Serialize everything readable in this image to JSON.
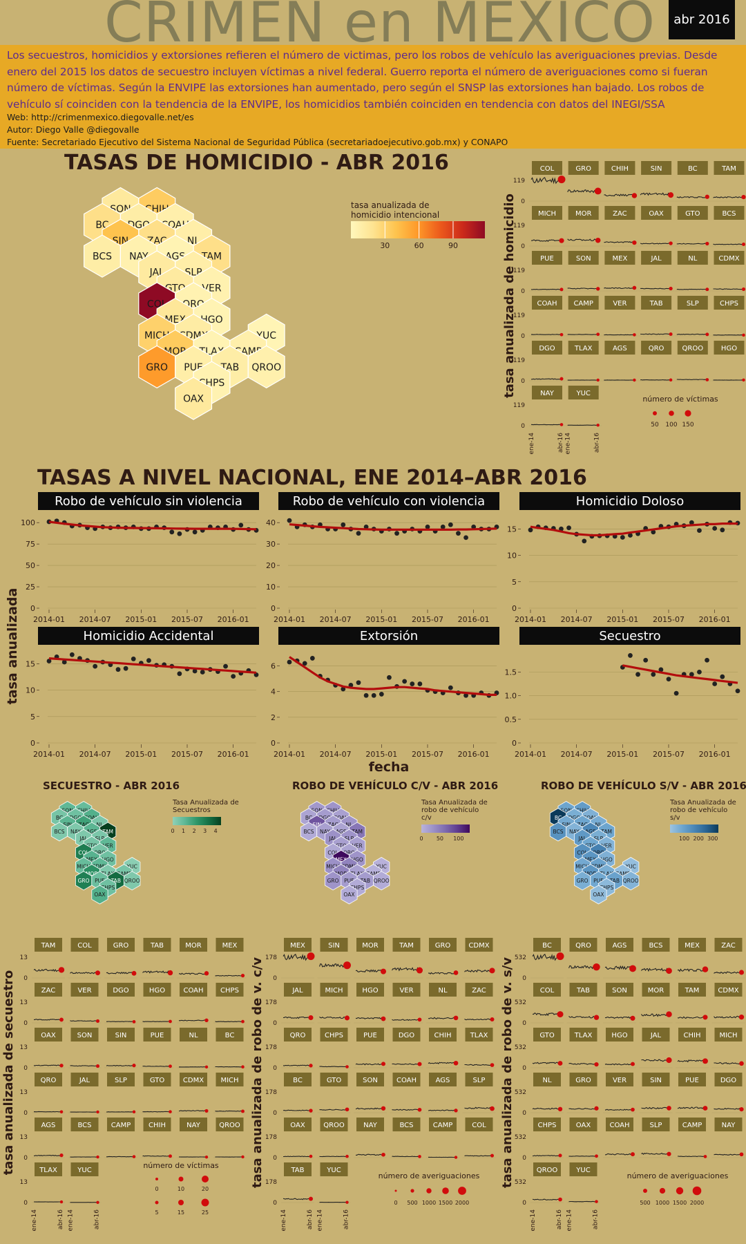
{
  "header": {
    "title": "CRIMEN en MEXICO",
    "date_badge": "abr 2016",
    "description": "Los secuestros, homicidios y extorsiones refieren el número de victimas, pero los robos de vehículo las averiguaciones previas. Desde enero del 2015 los datos de secuestro incluyen víctimas a nivel federal. Guerro reporta el número de averiguaciones como si fueran número de víctimas. Según la ENVIPE las extorsiones han aumentado, pero según el SNSP las extorsiones han bajado. Los robos de vehículo sí coinciden con la tendencia de la ENVIPE, los homicidios también coinciden en tendencia con datos del INEGI/SSA",
    "web": "Web: http://crimenmexico.diegovalle.net/es",
    "author": "Autor: Diego Valle @diegovalle",
    "source": "Fuente: Secretariado Ejecutivo del Sistema Nacional de Seguridad Pública (secretariadoejecutivo.gob.mx) y CONAPO"
  },
  "colors": {
    "background": "#c8b273",
    "band": "#e7a925",
    "trend": "#b30d0d",
    "panel_header": "#0c0c0c",
    "facet_strip": "#7a6a2c"
  },
  "titles": {
    "homicide_map": "TASAS DE HOMICIDIO - ABR 2016",
    "national": "TASAS A NIVEL NACIONAL, ENE 2014–ABR 2016",
    "kidnap_map": "SECUESTRO - ABR 2016",
    "cv_map": "ROBO DE VEHÍCULO C/V - ABR 2016",
    "sv_map": "ROBO DE VEHÍCULO S/V - ABR 2016"
  },
  "hexmaps": {
    "states": [
      {
        "id": "SON",
        "c": 1,
        "r": 0
      },
      {
        "id": "CHIH",
        "c": 3,
        "r": 0
      },
      {
        "id": "BC",
        "c": 0,
        "r": 1
      },
      {
        "id": "DGO",
        "c": 2,
        "r": 1
      },
      {
        "id": "COAH",
        "c": 4,
        "r": 1
      },
      {
        "id": "SIN",
        "c": 1,
        "r": 2
      },
      {
        "id": "ZAC",
        "c": 3,
        "r": 2
      },
      {
        "id": "NL",
        "c": 5,
        "r": 2
      },
      {
        "id": "BCS",
        "c": 0,
        "r": 3
      },
      {
        "id": "NAY",
        "c": 2,
        "r": 3
      },
      {
        "id": "AGS",
        "c": 4,
        "r": 3
      },
      {
        "id": "TAM",
        "c": 6,
        "r": 3
      },
      {
        "id": "JAL",
        "c": 3,
        "r": 4
      },
      {
        "id": "SLP",
        "c": 5,
        "r": 4
      },
      {
        "id": "GTO",
        "c": 4,
        "r": 5
      },
      {
        "id": "VER",
        "c": 6,
        "r": 5
      },
      {
        "id": "COL",
        "c": 3,
        "r": 6
      },
      {
        "id": "QRO",
        "c": 5,
        "r": 6
      },
      {
        "id": "MEX",
        "c": 4,
        "r": 7
      },
      {
        "id": "HGO",
        "c": 6,
        "r": 7
      },
      {
        "id": "MICH",
        "c": 3,
        "r": 8
      },
      {
        "id": "CDMX",
        "c": 5,
        "r": 8
      },
      {
        "id": "YUC",
        "c": 9,
        "r": 8
      },
      {
        "id": "MOR",
        "c": 4,
        "r": 9
      },
      {
        "id": "TLAX",
        "c": 6,
        "r": 9
      },
      {
        "id": "CAMP",
        "c": 8,
        "r": 9
      },
      {
        "id": "GRO",
        "c": 3,
        "r": 10
      },
      {
        "id": "PUE",
        "c": 5,
        "r": 10
      },
      {
        "id": "TAB",
        "c": 7,
        "r": 10
      },
      {
        "id": "QROO",
        "c": 9,
        "r": 10
      },
      {
        "id": "CHPS",
        "c": 6,
        "r": 11
      },
      {
        "id": "OAX",
        "c": 5,
        "r": 12
      }
    ],
    "homicide_values": {
      "SON": 14,
      "CHIH": 34,
      "BC": 22,
      "DGO": 10,
      "COAH": 8,
      "SIN": 40,
      "ZAC": 22,
      "NL": 9,
      "BCS": 10,
      "NAY": 6,
      "AGS": 4,
      "TAM": 22,
      "JAL": 13,
      "SLP": 9,
      "GTO": 13,
      "VER": 6,
      "COL": 118,
      "QRO": 5,
      "MEX": 16,
      "HGO": 4,
      "MICH": 31,
      "CDMX": 11,
      "YUC": 3,
      "MOR": 35,
      "TLAX": 4,
      "CAMP": 8,
      "GRO": 58,
      "PUE": 9,
      "TAB": 10,
      "QROO": 7,
      "CHPS": 5,
      "OAX": 14
    },
    "homicide_legend": {
      "title": "tasa anualizada de homicidio intencional",
      "ticks": [
        "30",
        "60",
        "90"
      ]
    },
    "kidnap_values": {
      "SON": 1.2,
      "CHIH": 1.0,
      "BC": 0.6,
      "DGO": 0.8,
      "COAH": 1.5,
      "SIN": 1.3,
      "ZAC": 2.0,
      "NL": 0.5,
      "BCS": 0.4,
      "NAY": 0.4,
      "AGS": 1.3,
      "TAM": 4.8,
      "JAL": 0.4,
      "SLP": 0.5,
      "GTO": 0.6,
      "VER": 1.2,
      "COL": 3.2,
      "QRO": 0.6,
      "MEX": 1.4,
      "HGO": 0.8,
      "MICH": 1.0,
      "CDMX": 1.2,
      "YUC": 0.1,
      "MOR": 2.6,
      "TLAX": 0.4,
      "CAMP": 0.6,
      "GRO": 3.1,
      "PUE": 0.9,
      "TAB": 3.7,
      "QROO": 0.4,
      "CHPS": 0.8,
      "OAX": 1.5
    },
    "kidnap_legend": {
      "title": "Tasa Anualizada de Secuestros",
      "ticks": [
        "0",
        "1",
        "2",
        "3",
        "4"
      ]
    },
    "cv_values": {
      "SON": 35,
      "CHIH": 40,
      "BC": 20,
      "DGO": 30,
      "COAH": 25,
      "SIN": 110,
      "ZAC": 30,
      "NL": 40,
      "BCS": 10,
      "NAY": 25,
      "AGS": 20,
      "TAM": 75,
      "JAL": 45,
      "SLP": 40,
      "GTO": 25,
      "VER": 25,
      "COL": 15,
      "QRO": 20,
      "MEX": 178,
      "HGO": 40,
      "MICH": 45,
      "CDMX": 60,
      "YUC": 2,
      "MOR": 60,
      "TLAX": 25,
      "CAMP": 3,
      "GRO": 40,
      "PUE": 30,
      "TAB": 30,
      "QROO": 10,
      "CHPS": 10,
      "OAX": 10
    },
    "cv_legend": {
      "title": "Tasa Anualizada de robo de vehículo c/v",
      "ticks": [
        "0",
        "50",
        "100"
      ]
    },
    "sv_values": {
      "SON": 110,
      "CHIH": 140,
      "BC": 430,
      "DGO": 80,
      "COAH": 70,
      "SIN": 95,
      "ZAC": 110,
      "NL": 85,
      "BCS": 170,
      "NAY": 60,
      "AGS": 210,
      "TAM": 110,
      "JAL": 150,
      "SLP": 80,
      "GTO": 100,
      "VER": 60,
      "COL": 180,
      "QRO": 230,
      "MEX": 160,
      "HGO": 70,
      "MICH": 95,
      "CDMX": 120,
      "YUC": 20,
      "MOR": 160,
      "TLAX": 80,
      "CAMP": 25,
      "GRO": 80,
      "PUE": 100,
      "TAB": 120,
      "QROO": 60,
      "CHPS": 40,
      "OAX": 30
    },
    "sv_legend": {
      "title": "Tasa Anualizada de robo de vehículo s/v",
      "ticks": [
        "100",
        "200",
        "300"
      ]
    }
  },
  "small_multiples": {
    "homicide": {
      "ylabel": "tasa anualizada de homicidio",
      "ymax_label": "119",
      "yzero_label": "0",
      "ymax": 119,
      "order": [
        "COL",
        "GRO",
        "CHIH",
        "SIN",
        "BC",
        "TAM",
        "MICH",
        "MOR",
        "ZAC",
        "OAX",
        "GTO",
        "BCS",
        "PUE",
        "SON",
        "MEX",
        "JAL",
        "NL",
        "CDMX",
        "COAH",
        "CAMP",
        "VER",
        "TAB",
        "SLP",
        "CHPS",
        "DGO",
        "TLAX",
        "AGS",
        "QRO",
        "QROO",
        "HGO",
        "NAY",
        "YUC"
      ],
      "legend_title": "número de víctimas",
      "legend_sizes": [
        "50",
        "100",
        "150"
      ],
      "x_labels": [
        "ene-14",
        "abr-16"
      ]
    },
    "kidnap": {
      "ylabel": "tasa anualizada de secuestro",
      "ymax_label": "13",
      "yzero_label": "0",
      "ymax": 13,
      "order": [
        "TAM",
        "COL",
        "GRO",
        "TAB",
        "MOR",
        "MEX",
        "ZAC",
        "VER",
        "DGO",
        "HGO",
        "COAH",
        "CHPS",
        "OAX",
        "SON",
        "SIN",
        "PUE",
        "NL",
        "BC",
        "QRO",
        "JAL",
        "SLP",
        "GTO",
        "CDMX",
        "MICH",
        "AGS",
        "BCS",
        "CAMP",
        "CHIH",
        "NAY",
        "QROO",
        "TLAX",
        "YUC"
      ],
      "legend_title": "número de víctimas",
      "legend_sizes_row1": [
        "0",
        "10",
        "20"
      ],
      "legend_sizes_row2": [
        "5",
        "15",
        "25"
      ],
      "x_labels": [
        "ene-14",
        "abr-16"
      ]
    },
    "cv": {
      "ylabel": "tasa anualizada de robo de v. c/v",
      "ymax_label": "178",
      "yzero_label": "0",
      "ymax": 178,
      "order": [
        "MEX",
        "SIN",
        "MOR",
        "TAM",
        "GRO",
        "CDMX",
        "JAL",
        "MICH",
        "HGO",
        "VER",
        "NL",
        "ZAC",
        "QRO",
        "CHPS",
        "PUE",
        "DGO",
        "CHIH",
        "TLAX",
        "BC",
        "GTO",
        "SON",
        "COAH",
        "AGS",
        "SLP",
        "OAX",
        "QROO",
        "NAY",
        "BCS",
        "CAMP",
        "COL",
        "TAB",
        "YUC"
      ],
      "legend_title": "número de averiguaciones",
      "legend_sizes": [
        "0",
        "500",
        "1000",
        "1500",
        "2000"
      ],
      "x_labels": [
        "ene-14",
        "abr-16"
      ]
    },
    "sv": {
      "ylabel": "tasa anualizada de robo de v. s/v",
      "ymax_label": "532",
      "yzero_label": "0",
      "ymax": 532,
      "order": [
        "BC",
        "QRO",
        "AGS",
        "BCS",
        "MEX",
        "ZAC",
        "COL",
        "TAB",
        "SON",
        "MOR",
        "TAM",
        "CDMX",
        "GTO",
        "TLAX",
        "HGO",
        "JAL",
        "CHIH",
        "MICH",
        "NL",
        "GRO",
        "VER",
        "SIN",
        "PUE",
        "DGO",
        "CHPS",
        "OAX",
        "COAH",
        "SLP",
        "CAMP",
        "NAY",
        "QROO",
        "YUC"
      ],
      "legend_title": "número de averiguaciones",
      "legend_sizes": [
        "500",
        "1000",
        "1500",
        "2000"
      ],
      "x_labels": [
        "ene-14",
        "abr-16"
      ]
    }
  },
  "chart_data": [
    {
      "type": "scatter",
      "title": "Robo de vehículo sin violencia",
      "x_ticks": [
        "2014-01",
        "2014-07",
        "2015-01",
        "2015-07",
        "2016-01"
      ],
      "ylim": [
        0,
        105
      ],
      "y_ticks": [
        0,
        25,
        50,
        75,
        100
      ],
      "values": [
        101,
        102,
        100,
        96,
        97,
        94,
        93,
        95,
        94,
        95,
        94,
        95,
        93,
        93,
        95,
        94,
        89,
        87,
        92,
        89,
        91,
        95,
        94,
        95,
        92,
        97,
        92,
        91
      ],
      "trend": [
        101,
        99.8,
        98.7,
        97.7,
        96.8,
        96.0,
        95.3,
        94.7,
        94.3,
        94.0,
        93.8,
        93.7,
        93.6,
        93.5,
        93.4,
        93.3,
        93.1,
        93.0,
        92.9,
        92.8,
        92.8,
        92.8,
        92.8,
        92.8,
        92.7,
        92.6,
        92.4,
        92.2
      ]
    },
    {
      "type": "scatter",
      "title": "Robo de vehículo con violencia",
      "x_ticks": [
        "2014-01",
        "2014-07",
        "2015-01",
        "2015-07",
        "2016-01"
      ],
      "ylim": [
        0,
        42
      ],
      "y_ticks": [
        0,
        10,
        20,
        30,
        40
      ],
      "values": [
        41,
        38,
        39,
        38,
        39,
        37,
        37,
        39,
        37,
        35,
        38,
        37,
        36,
        37,
        35,
        36,
        37,
        36,
        38,
        36,
        38,
        39,
        35,
        33,
        38,
        37,
        37,
        38
      ],
      "trend": [
        39.2,
        38.9,
        38.6,
        38.3,
        38.0,
        37.8,
        37.6,
        37.4,
        37.2,
        37.0,
        36.9,
        36.8,
        36.7,
        36.7,
        36.7,
        36.7,
        36.7,
        36.7,
        36.7,
        36.7,
        36.7,
        36.7,
        36.8,
        36.8,
        36.9,
        37.0,
        37.1,
        37.2
      ]
    },
    {
      "type": "scatter",
      "title": "Homicidio Doloso",
      "x_ticks": [
        "2014-01",
        "2014-07",
        "2015-01",
        "2015-07",
        "2016-01"
      ],
      "ylim": [
        0,
        17
      ],
      "y_ticks": [
        0,
        5,
        10,
        15
      ],
      "values": [
        14.8,
        15.4,
        15.2,
        15.1,
        15.0,
        15.2,
        14.0,
        12.7,
        13.6,
        13.7,
        13.7,
        13.6,
        13.4,
        13.8,
        14.1,
        15.1,
        14.4,
        15.5,
        15.4,
        15.9,
        15.6,
        16.2,
        14.7,
        15.9,
        15.1,
        14.8,
        16.2,
        16.1
      ],
      "trend": [
        15.4,
        15.2,
        15.0,
        14.8,
        14.5,
        14.2,
        14.0,
        13.9,
        13.8,
        13.8,
        13.9,
        14.0,
        14.1,
        14.3,
        14.5,
        14.7,
        14.9,
        15.1,
        15.3,
        15.5,
        15.6,
        15.7,
        15.8,
        15.9,
        15.9,
        16.0,
        16.0,
        16.0
      ]
    },
    {
      "type": "scatter",
      "title": "Homicidio Accidental",
      "x_ticks": [
        "2014-01",
        "2014-07",
        "2015-01",
        "2015-07",
        "2016-01"
      ],
      "ylim": [
        0,
        17
      ],
      "y_ticks": [
        0,
        5,
        10,
        15
      ],
      "values": [
        15.5,
        16.3,
        15.3,
        16.7,
        16.0,
        15.6,
        14.5,
        15.3,
        14.8,
        13.9,
        14.1,
        15.9,
        15.1,
        15.6,
        14.7,
        14.8,
        14.5,
        13.1,
        14.0,
        13.6,
        13.4,
        13.9,
        13.5,
        14.5,
        12.6,
        13.2,
        13.7,
        12.9
      ],
      "trend": [
        16.0,
        15.9,
        15.8,
        15.7,
        15.6,
        15.5,
        15.4,
        15.3,
        15.2,
        15.1,
        15.0,
        14.9,
        14.8,
        14.7,
        14.6,
        14.5,
        14.4,
        14.3,
        14.2,
        14.1,
        14.0,
        13.9,
        13.8,
        13.7,
        13.6,
        13.5,
        13.4,
        13.3
      ]
    },
    {
      "type": "scatter",
      "title": "Extorsión",
      "x_ticks": [
        "2014-01",
        "2014-07",
        "2015-01",
        "2015-07",
        "2016-01"
      ],
      "ylim": [
        0,
        7
      ],
      "y_ticks": [
        0,
        2,
        4,
        6
      ],
      "values": [
        6.3,
        6.4,
        6.2,
        6.6,
        5.2,
        4.9,
        4.5,
        4.2,
        4.5,
        4.7,
        3.7,
        3.7,
        3.8,
        5.1,
        4.4,
        4.8,
        4.6,
        4.6,
        4.1,
        4.0,
        3.9,
        4.3,
        3.9,
        3.7,
        3.7,
        3.9,
        3.7,
        3.9
      ],
      "trend": [
        6.7,
        6.3,
        5.9,
        5.5,
        5.1,
        4.8,
        4.6,
        4.4,
        4.3,
        4.25,
        4.2,
        4.2,
        4.25,
        4.3,
        4.35,
        4.35,
        4.3,
        4.25,
        4.2,
        4.1,
        4.05,
        4.0,
        3.95,
        3.9,
        3.85,
        3.8,
        3.75,
        3.75
      ]
    },
    {
      "type": "scatter",
      "title": "Secuestro",
      "x_ticks": [
        "2014-01",
        "2014-07",
        "2015-01",
        "2015-07",
        "2016-01"
      ],
      "ylim": [
        0,
        1.9
      ],
      "y_ticks": [
        0,
        0.5,
        1.0,
        1.5
      ],
      "y_tick_labels": [
        "0",
        "0.5",
        "1.0",
        "1.5"
      ],
      "x_start_index": 12,
      "values": [
        1.6,
        1.85,
        1.45,
        1.75,
        1.45,
        1.55,
        1.35,
        1.05,
        1.45,
        1.45,
        1.5,
        1.75,
        1.25,
        1.4,
        1.25,
        1.1
      ],
      "trend": [
        1.64,
        1.61,
        1.58,
        1.55,
        1.52,
        1.49,
        1.46,
        1.43,
        1.41,
        1.39,
        1.37,
        1.35,
        1.33,
        1.31,
        1.29,
        1.27
      ]
    }
  ],
  "national": {
    "ylabel": "tasa anualizada",
    "xlabel": "fecha"
  }
}
